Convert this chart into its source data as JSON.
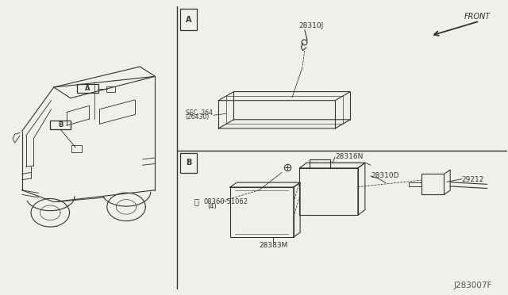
{
  "bg_color": "#f0f0eb",
  "line_color": "#333333",
  "fig_width": 6.4,
  "fig_height": 3.72,
  "diagram_code": "J283007F",
  "section_A_label": "A",
  "section_B_label": "B",
  "part_28310J": "28310J",
  "part_28316N": "28316N",
  "part_28310D": "28310D",
  "part_29212": "29212",
  "part_screw": "08360-51062",
  "part_screw_qty": "(4)",
  "part_28383M": "28383M",
  "part_sec264": "SEC. 264",
  "part_sec264b": "(26430)",
  "front_label": "FRONT"
}
